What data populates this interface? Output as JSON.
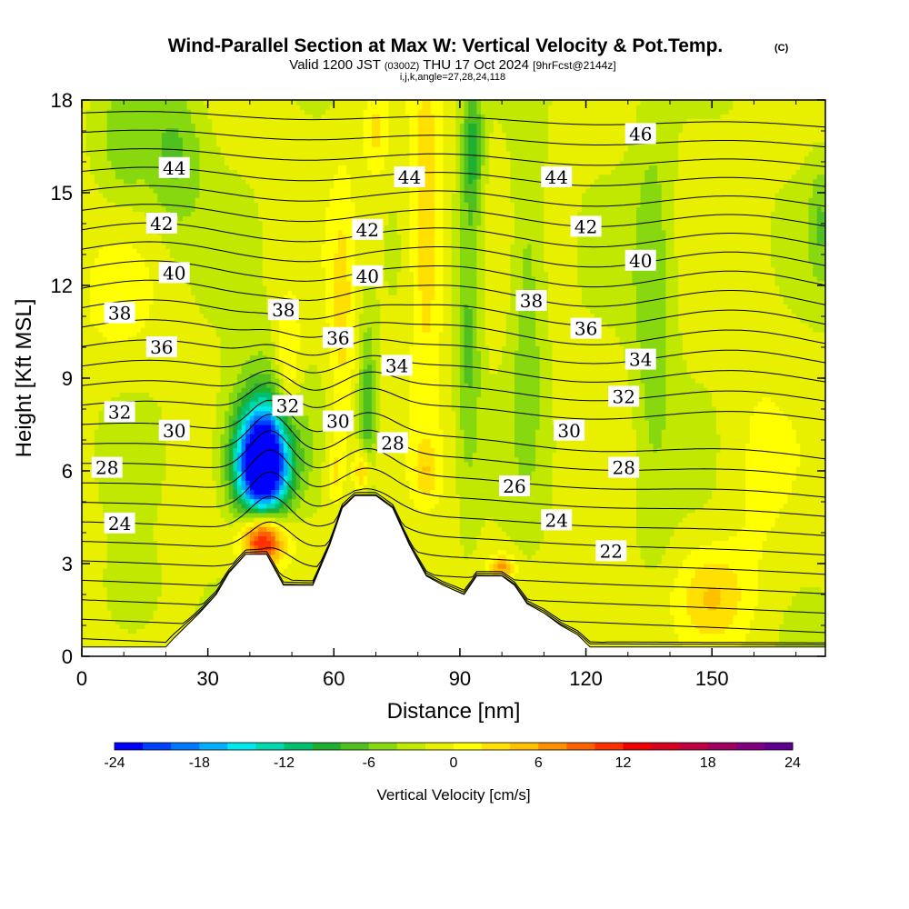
{
  "chart_data": {
    "type": "contour",
    "title": "Wind-Parallel Section at Max W: Vertical Velocity & Pot.Temp.",
    "title_mark": "(C)",
    "subtitle_parts": [
      "Valid 1200 JST",
      "(0300Z)",
      "THU 17 Oct 2024",
      "[9hrFcst@2144z]"
    ],
    "subtitle2": "i,j,k,angle=27,28,24,118",
    "xlabel": "Distance [nm]",
    "ylabel": "Height [Kft MSL]",
    "xlim": [
      0,
      177
    ],
    "ylim": [
      0,
      18
    ],
    "xticks": [
      0,
      30,
      60,
      90,
      120,
      150
    ],
    "yticks": [
      0,
      3,
      6,
      9,
      12,
      15,
      18
    ],
    "colorbar": {
      "label": "Vertical Velocity [cm/s]",
      "ticks": [
        "-24",
        "-18",
        "-12",
        "-6",
        "0",
        "6",
        "12",
        "18",
        "24"
      ],
      "range": [
        -24,
        24
      ],
      "colors": [
        "#0000ff",
        "#0040ff",
        "#0078ff",
        "#00b0ff",
        "#00e8f0",
        "#00d8b0",
        "#00c070",
        "#20b030",
        "#50c020",
        "#88d810",
        "#c0e800",
        "#e8f000",
        "#ffff00",
        "#ffe000",
        "#ffc000",
        "#ff9000",
        "#ff6000",
        "#ff3000",
        "#f00000",
        "#d80020",
        "#c00040",
        "#a00060",
        "#800080",
        "#600090"
      ]
    },
    "contour_labels": [
      {
        "text": "46",
        "x": 133,
        "y": 16.9
      },
      {
        "text": "44",
        "x": 22,
        "y": 15.8
      },
      {
        "text": "44",
        "x": 78,
        "y": 15.5
      },
      {
        "text": "44",
        "x": 113,
        "y": 15.5
      },
      {
        "text": "42",
        "x": 19,
        "y": 14.0
      },
      {
        "text": "42",
        "x": 68,
        "y": 13.8
      },
      {
        "text": "42",
        "x": 120,
        "y": 13.9
      },
      {
        "text": "40",
        "x": 22,
        "y": 12.4
      },
      {
        "text": "40",
        "x": 68,
        "y": 12.3
      },
      {
        "text": "40",
        "x": 133,
        "y": 12.8
      },
      {
        "text": "38",
        "x": 9,
        "y": 11.1
      },
      {
        "text": "38",
        "x": 48,
        "y": 11.2
      },
      {
        "text": "38",
        "x": 107,
        "y": 11.5
      },
      {
        "text": "36",
        "x": 19,
        "y": 10.0
      },
      {
        "text": "36",
        "x": 61,
        "y": 10.3
      },
      {
        "text": "36",
        "x": 120,
        "y": 10.6
      },
      {
        "text": "34",
        "x": 75,
        "y": 9.4
      },
      {
        "text": "34",
        "x": 133,
        "y": 9.6
      },
      {
        "text": "32",
        "x": 9,
        "y": 7.9
      },
      {
        "text": "32",
        "x": 49,
        "y": 8.1
      },
      {
        "text": "32",
        "x": 129,
        "y": 8.4
      },
      {
        "text": "30",
        "x": 22,
        "y": 7.3
      },
      {
        "text": "30",
        "x": 61,
        "y": 7.6
      },
      {
        "text": "30",
        "x": 116,
        "y": 7.3
      },
      {
        "text": "28",
        "x": 6,
        "y": 6.1
      },
      {
        "text": "28",
        "x": 74,
        "y": 6.9
      },
      {
        "text": "28",
        "x": 129,
        "y": 6.1
      },
      {
        "text": "26",
        "x": 103,
        "y": 5.5
      },
      {
        "text": "24",
        "x": 9,
        "y": 4.3
      },
      {
        "text": "24",
        "x": 113,
        "y": 4.4
      },
      {
        "text": "22",
        "x": 126,
        "y": 3.4
      }
    ],
    "terrain": [
      [
        0,
        0.3
      ],
      [
        20,
        0.3
      ],
      [
        22,
        0.6
      ],
      [
        25,
        1.0
      ],
      [
        28,
        1.4
      ],
      [
        32,
        2.0
      ],
      [
        35,
        2.7
      ],
      [
        39,
        3.3
      ],
      [
        44,
        3.3
      ],
      [
        48,
        2.3
      ],
      [
        55,
        2.3
      ],
      [
        59,
        3.6
      ],
      [
        62,
        4.8
      ],
      [
        65,
        5.2
      ],
      [
        70,
        5.2
      ],
      [
        74,
        4.8
      ],
      [
        78,
        3.6
      ],
      [
        82,
        2.6
      ],
      [
        86,
        2.3
      ],
      [
        91,
        2.0
      ],
      [
        94,
        2.6
      ],
      [
        100,
        2.6
      ],
      [
        103,
        2.3
      ],
      [
        106,
        1.7
      ],
      [
        110,
        1.4
      ],
      [
        114,
        1.0
      ],
      [
        118,
        0.7
      ],
      [
        121,
        0.3
      ],
      [
        177,
        0.3
      ]
    ],
    "velocity_features": [
      {
        "x": 43,
        "y": 6.2,
        "w": -22,
        "rx": 6,
        "ry": 1.7
      },
      {
        "x": 43,
        "y": 6.0,
        "w": -12,
        "rx": 8,
        "ry": 3.0
      },
      {
        "x": 43,
        "y": 3.8,
        "w": 17,
        "rx": 5,
        "ry": 0.9
      },
      {
        "x": 44,
        "y": 4.3,
        "w": 6,
        "rx": 9,
        "ry": 1.8
      },
      {
        "x": 49,
        "y": 9.2,
        "w": 5,
        "rx": 3,
        "ry": 2.2
      },
      {
        "x": 62,
        "y": 10.5,
        "w": 4,
        "rx": 3,
        "ry": 5.0
      },
      {
        "x": 82,
        "y": 13.8,
        "w": 6,
        "rx": 4,
        "ry": 5.0
      },
      {
        "x": 70,
        "y": 17.0,
        "w": 4,
        "rx": 3,
        "ry": 1.5
      },
      {
        "x": 68,
        "y": 8.0,
        "w": -6,
        "rx": 2,
        "ry": 3.0
      },
      {
        "x": 93,
        "y": 16.5,
        "w": -7,
        "rx": 2.5,
        "ry": 2.5
      },
      {
        "x": 92,
        "y": 10.0,
        "w": -5,
        "rx": 3,
        "ry": 4.5
      },
      {
        "x": 106,
        "y": 11.5,
        "w": -4,
        "rx": 4,
        "ry": 6.0
      },
      {
        "x": 136,
        "y": 11.0,
        "w": -4,
        "rx": 5,
        "ry": 7.0
      },
      {
        "x": 22,
        "y": 16.2,
        "w": -5,
        "rx": 7,
        "ry": 2.5
      },
      {
        "x": 10,
        "y": 16.5,
        "w": -4,
        "rx": 6,
        "ry": 2.0
      },
      {
        "x": 150,
        "y": 2.0,
        "w": 5,
        "rx": 8,
        "ry": 1.5
      },
      {
        "x": 128,
        "y": 1.5,
        "w": 2,
        "rx": 10,
        "ry": 1.4
      },
      {
        "x": 8,
        "y": 11.5,
        "w": 2,
        "rx": 10,
        "ry": 2.0
      },
      {
        "x": 60,
        "y": 6.0,
        "w": 4,
        "rx": 2,
        "ry": 1.0
      },
      {
        "x": 67,
        "y": 6.0,
        "w": 8,
        "rx": 2,
        "ry": 0.7
      },
      {
        "x": 82,
        "y": 6.0,
        "w": 4,
        "rx": 3,
        "ry": 1.0
      },
      {
        "x": 100,
        "y": 2.9,
        "w": 8,
        "rx": 3,
        "ry": 0.4
      },
      {
        "x": 12,
        "y": 2.0,
        "w": -3,
        "rx": 6,
        "ry": 1.5
      },
      {
        "x": 160,
        "y": 6.0,
        "w": 2,
        "rx": 8,
        "ry": 4.0
      },
      {
        "x": 176,
        "y": 14.0,
        "w": -4,
        "rx": 3,
        "ry": 2.0
      }
    ],
    "isentropes": {
      "theta_min": 20,
      "theta_max": 47,
      "step": 1
    }
  }
}
